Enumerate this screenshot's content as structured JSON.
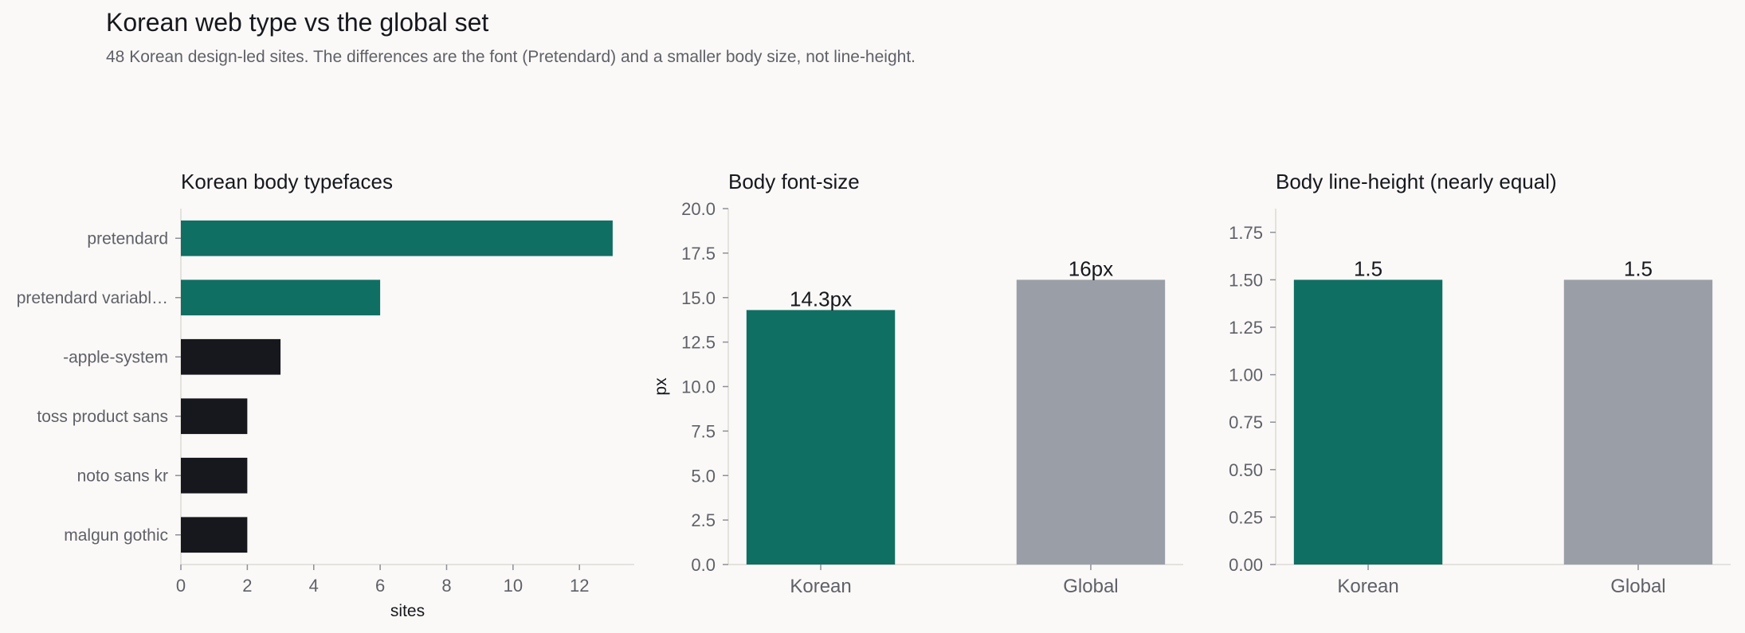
{
  "figure": {
    "title": "Korean web type vs the global set",
    "subtitle": "48 Korean design-led sites. The differences are the font (Pretendard) and a smaller body size, not line-height."
  },
  "colors": {
    "accent": "#0f6f63",
    "dark": "#16181d",
    "neutral": "#9a9fa7",
    "text_muted": "#5f6168",
    "spine": "#dddbd6",
    "background": "#faf9f7"
  },
  "chart_data": [
    {
      "type": "bar",
      "orientation": "horizontal",
      "title": "Korean body typefaces",
      "xlabel": "sites",
      "ylabel": "",
      "categories": [
        "pretendard",
        "pretendard variabl…",
        "-apple-system",
        "toss product sans",
        "noto sans kr",
        "malgun gothic"
      ],
      "values": [
        13,
        6,
        3,
        2,
        2,
        2
      ],
      "bar_colors": [
        "#0f6f63",
        "#0f6f63",
        "#16181d",
        "#16181d",
        "#16181d",
        "#16181d"
      ],
      "xlim": [
        0,
        13.65
      ],
      "xticks": [
        0,
        2,
        4,
        6,
        8,
        10,
        12
      ],
      "xtick_labels": [
        "0",
        "2",
        "4",
        "6",
        "8",
        "10",
        "12"
      ]
    },
    {
      "type": "bar",
      "orientation": "vertical",
      "title": "Body font-size",
      "xlabel": "",
      "ylabel": "px",
      "categories": [
        "Korean",
        "Global"
      ],
      "values": [
        14.3,
        16
      ],
      "data_labels": [
        "14.3px",
        "16px"
      ],
      "bar_colors": [
        "#0f6f63",
        "#9a9fa7"
      ],
      "ylim": [
        0,
        20
      ],
      "yticks": [
        0,
        2.5,
        5,
        7.5,
        10,
        12.5,
        15,
        17.5,
        20
      ],
      "ytick_labels": [
        "0.0",
        "2.5",
        "5.0",
        "7.5",
        "10.0",
        "12.5",
        "15.0",
        "17.5",
        "20.0"
      ]
    },
    {
      "type": "bar",
      "orientation": "vertical",
      "title": "Body line-height (nearly equal)",
      "xlabel": "",
      "ylabel": "",
      "categories": [
        "Korean",
        "Global"
      ],
      "values": [
        1.5,
        1.5
      ],
      "data_labels": [
        "1.5",
        "1.5"
      ],
      "bar_colors": [
        "#0f6f63",
        "#9a9fa7"
      ],
      "ylim": [
        0,
        1.875
      ],
      "yticks": [
        0,
        0.25,
        0.5,
        0.75,
        1,
        1.25,
        1.5,
        1.75
      ],
      "ytick_labels": [
        "0.00",
        "0.25",
        "0.50",
        "0.75",
        "1.00",
        "1.25",
        "1.50",
        "1.75"
      ]
    }
  ]
}
